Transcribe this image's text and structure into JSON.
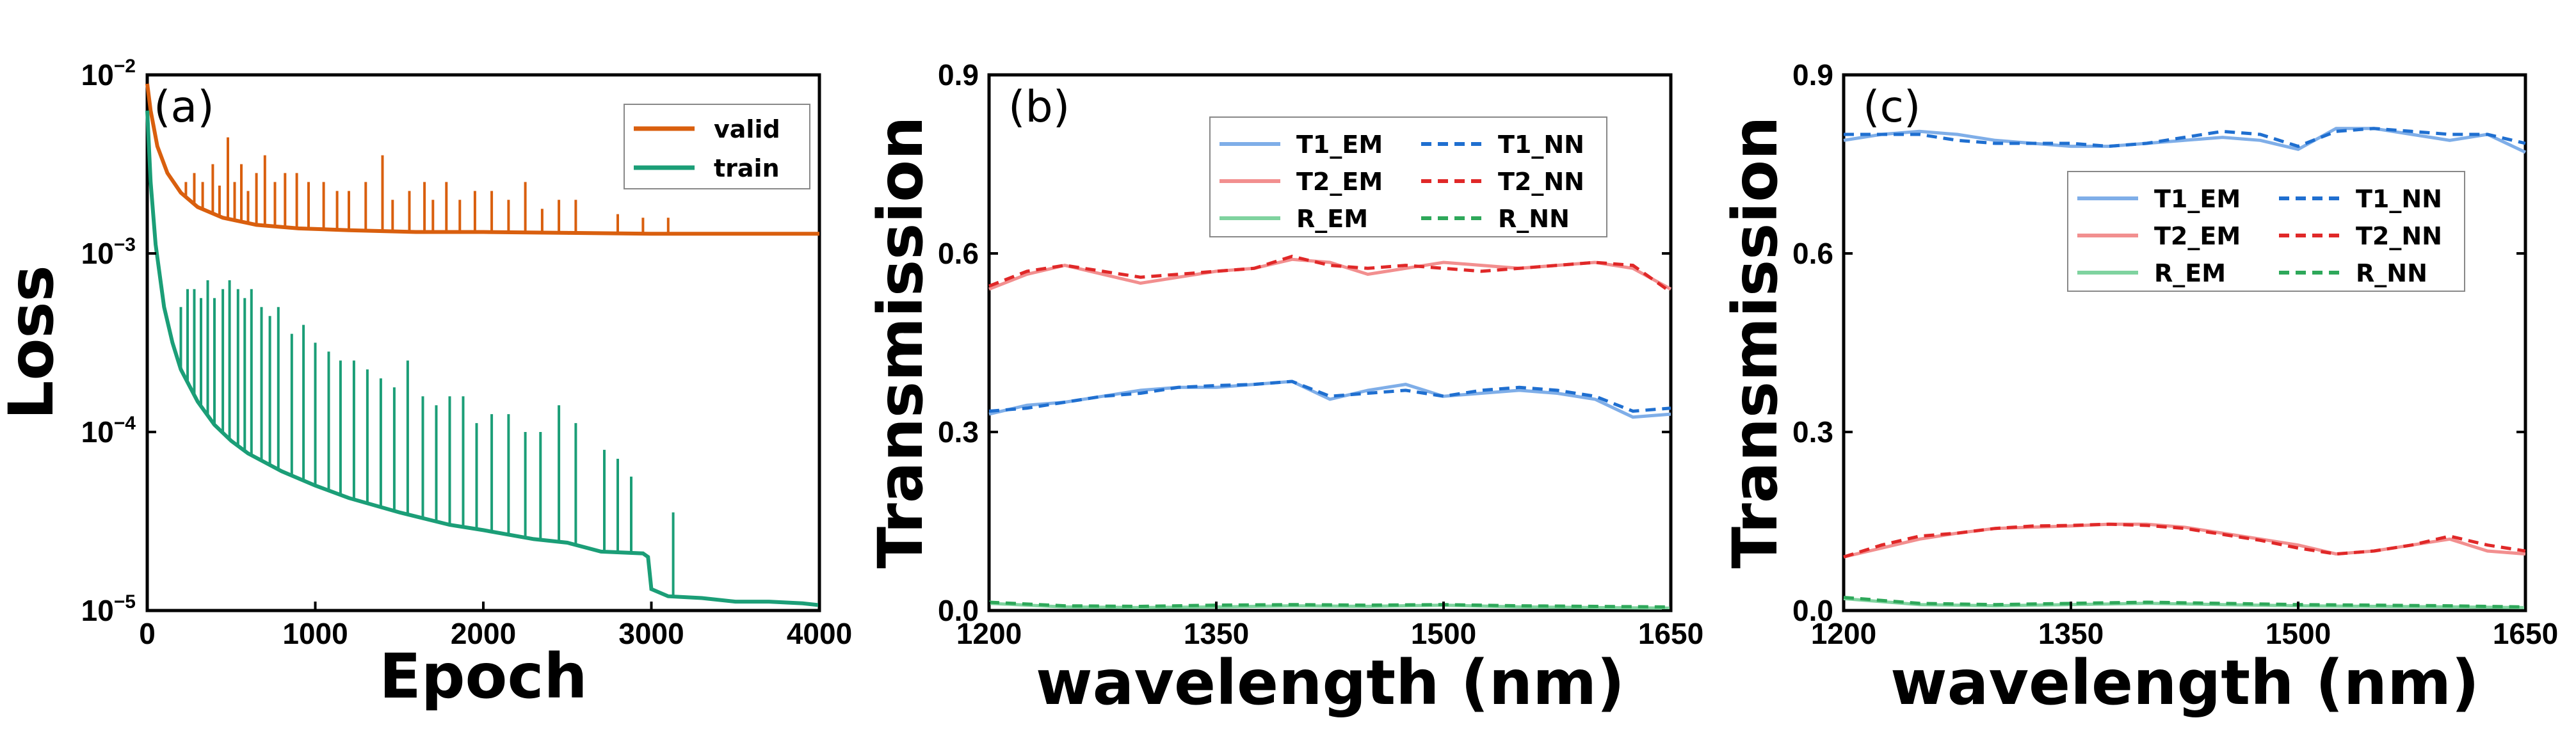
{
  "chart_data": [
    {
      "type": "line",
      "panel_label": "(a)",
      "title": "",
      "xlabel": "Epoch",
      "ylabel": "Loss",
      "xlim": [
        0,
        4000
      ],
      "ylim_log10": [
        -5,
        -2
      ],
      "yscale": "log",
      "xticks": [
        "0",
        "1000",
        "2000",
        "3000",
        "4000"
      ],
      "xtick_values": [
        0,
        1000,
        2000,
        3000,
        4000
      ],
      "yticks": [
        {
          "base": "10",
          "exp": "−2",
          "value": -2
        },
        {
          "base": "10",
          "exp": "−3",
          "value": -3
        },
        {
          "base": "10",
          "exp": "−4",
          "value": -4
        },
        {
          "base": "10",
          "exp": "−5",
          "value": -5
        }
      ],
      "legend": {
        "position": "top-right"
      },
      "series": [
        {
          "name": "valid",
          "color": "#D95F0E",
          "baseline_x": [
            0,
            20,
            60,
            120,
            200,
            300,
            450,
            650,
            900,
            1200,
            1600,
            2000,
            2500,
            3000,
            3500,
            4000
          ],
          "baseline_log10": [
            -2.05,
            -2.2,
            -2.4,
            -2.55,
            -2.66,
            -2.74,
            -2.8,
            -2.84,
            -2.86,
            -2.87,
            -2.88,
            -2.88,
            -2.885,
            -2.89,
            -2.89,
            -2.89
          ],
          "spikes_x": [
            230,
            280,
            330,
            390,
            430,
            480,
            520,
            560,
            600,
            650,
            700,
            760,
            820,
            890,
            960,
            1050,
            1130,
            1200,
            1300,
            1400,
            1460,
            1560,
            1650,
            1700,
            1780,
            1860,
            1950,
            2050,
            2150,
            2250,
            2350,
            2450,
            2550,
            2800,
            2950,
            3100
          ],
          "spikes_log10": [
            -2.6,
            -2.55,
            -2.6,
            -2.5,
            -2.62,
            -2.35,
            -2.6,
            -2.5,
            -2.65,
            -2.55,
            -2.45,
            -2.6,
            -2.55,
            -2.55,
            -2.6,
            -2.6,
            -2.65,
            -2.65,
            -2.6,
            -2.45,
            -2.7,
            -2.65,
            -2.6,
            -2.7,
            -2.6,
            -2.7,
            -2.65,
            -2.65,
            -2.7,
            -2.6,
            -2.75,
            -2.7,
            -2.7,
            -2.78,
            -2.8,
            -2.8
          ]
        },
        {
          "name": "train",
          "color": "#1B9E77",
          "baseline_x": [
            0,
            20,
            50,
            100,
            150,
            200,
            300,
            400,
            500,
            600,
            800,
            1000,
            1200,
            1500,
            1800,
            2000,
            2300,
            2500,
            2700,
            2950,
            2980,
            3000,
            3100,
            3300,
            3500,
            3700,
            3900,
            4000
          ],
          "baseline_log10": [
            -2.2,
            -2.6,
            -2.95,
            -3.3,
            -3.5,
            -3.65,
            -3.83,
            -3.96,
            -4.05,
            -4.12,
            -4.22,
            -4.3,
            -4.37,
            -4.45,
            -4.52,
            -4.55,
            -4.6,
            -4.62,
            -4.67,
            -4.68,
            -4.7,
            -4.88,
            -4.92,
            -4.93,
            -4.95,
            -4.95,
            -4.96,
            -4.97
          ],
          "spikes_x": [
            200,
            240,
            280,
            320,
            360,
            400,
            450,
            490,
            540,
            580,
            620,
            680,
            730,
            780,
            860,
            930,
            1000,
            1080,
            1150,
            1230,
            1310,
            1390,
            1470,
            1550,
            1640,
            1720,
            1800,
            1880,
            1960,
            2050,
            2150,
            2250,
            2340,
            2450,
            2550,
            2720,
            2800,
            2880,
            3130
          ],
          "spikes_log10": [
            -3.3,
            -3.2,
            -3.2,
            -3.25,
            -3.15,
            -3.25,
            -3.2,
            -3.15,
            -3.2,
            -3.25,
            -3.2,
            -3.3,
            -3.35,
            -3.3,
            -3.45,
            -3.4,
            -3.5,
            -3.55,
            -3.6,
            -3.6,
            -3.65,
            -3.7,
            -3.75,
            -3.6,
            -3.8,
            -3.85,
            -3.8,
            -3.8,
            -3.95,
            -3.9,
            -3.9,
            -4.0,
            -4.0,
            -3.85,
            -3.95,
            -4.1,
            -4.15,
            -4.25,
            -4.45
          ]
        }
      ]
    },
    {
      "type": "line",
      "panel_label": "(b)",
      "title": "",
      "xlabel": "wavelength (nm)",
      "ylabel": "Transmission",
      "xlim": [
        1200,
        1650
      ],
      "ylim": [
        0,
        0.9
      ],
      "xticks": [
        "1200",
        "1350",
        "1500",
        "1650"
      ],
      "xtick_values": [
        1200,
        1350,
        1500,
        1650
      ],
      "yticks": [
        "0.0",
        "0.3",
        "0.6",
        "0.9"
      ],
      "ytick_values": [
        0,
        0.3,
        0.6,
        0.9
      ],
      "legend": {
        "position": "top-right",
        "columns": 2
      },
      "series": [
        {
          "name": "T1_EM",
          "color": "#7FAEE8",
          "style": "solid",
          "x": [
            1200,
            1225,
            1250,
            1275,
            1300,
            1325,
            1350,
            1375,
            1400,
            1425,
            1450,
            1475,
            1500,
            1525,
            1550,
            1575,
            1600,
            1625,
            1650
          ],
          "y": [
            0.33,
            0.345,
            0.35,
            0.36,
            0.37,
            0.375,
            0.375,
            0.38,
            0.385,
            0.355,
            0.37,
            0.38,
            0.36,
            0.365,
            0.37,
            0.365,
            0.355,
            0.325,
            0.33
          ]
        },
        {
          "name": "T1_NN",
          "color": "#1F6FD0",
          "style": "dashed",
          "x": [
            1200,
            1225,
            1250,
            1275,
            1300,
            1325,
            1350,
            1375,
            1400,
            1425,
            1450,
            1475,
            1500,
            1525,
            1550,
            1575,
            1600,
            1625,
            1650
          ],
          "y": [
            0.335,
            0.34,
            0.35,
            0.36,
            0.365,
            0.375,
            0.378,
            0.38,
            0.385,
            0.36,
            0.365,
            0.37,
            0.36,
            0.37,
            0.375,
            0.37,
            0.36,
            0.335,
            0.34
          ]
        },
        {
          "name": "T2_EM",
          "color": "#F28F8F",
          "style": "solid",
          "x": [
            1200,
            1225,
            1250,
            1275,
            1300,
            1325,
            1350,
            1375,
            1400,
            1425,
            1450,
            1475,
            1500,
            1525,
            1550,
            1575,
            1600,
            1625,
            1650
          ],
          "y": [
            0.54,
            0.565,
            0.58,
            0.565,
            0.55,
            0.56,
            0.57,
            0.575,
            0.59,
            0.585,
            0.565,
            0.575,
            0.585,
            0.58,
            0.575,
            0.58,
            0.585,
            0.575,
            0.54
          ]
        },
        {
          "name": "T2_NN",
          "color": "#E02828",
          "style": "dashed",
          "x": [
            1200,
            1225,
            1250,
            1275,
            1300,
            1325,
            1350,
            1375,
            1400,
            1425,
            1450,
            1475,
            1500,
            1525,
            1550,
            1575,
            1600,
            1625,
            1650
          ],
          "y": [
            0.545,
            0.57,
            0.58,
            0.57,
            0.56,
            0.565,
            0.57,
            0.575,
            0.595,
            0.58,
            0.575,
            0.58,
            0.575,
            0.57,
            0.575,
            0.58,
            0.585,
            0.58,
            0.535
          ]
        },
        {
          "name": "R_EM",
          "color": "#7FD39F",
          "style": "solid",
          "x": [
            1200,
            1250,
            1300,
            1350,
            1400,
            1450,
            1500,
            1550,
            1600,
            1650
          ],
          "y": [
            0.012,
            0.006,
            0.005,
            0.006,
            0.008,
            0.007,
            0.009,
            0.006,
            0.005,
            0.004
          ]
        },
        {
          "name": "R_NN",
          "color": "#2EA85A",
          "style": "dashed",
          "x": [
            1200,
            1250,
            1300,
            1350,
            1400,
            1450,
            1500,
            1550,
            1600,
            1650
          ],
          "y": [
            0.014,
            0.008,
            0.007,
            0.009,
            0.01,
            0.009,
            0.01,
            0.008,
            0.007,
            0.006
          ]
        }
      ]
    },
    {
      "type": "line",
      "panel_label": "(c)",
      "title": "",
      "xlabel": "wavelength (nm)",
      "ylabel": "Transmission",
      "xlim": [
        1200,
        1650
      ],
      "ylim": [
        0,
        0.9
      ],
      "xticks": [
        "1200",
        "1350",
        "1500",
        "1650"
      ],
      "xtick_values": [
        1200,
        1350,
        1500,
        1650
      ],
      "yticks": [
        "0.0",
        "0.3",
        "0.6",
        "0.9"
      ],
      "ytick_values": [
        0,
        0.3,
        0.6,
        0.9
      ],
      "legend": {
        "position": "top-right",
        "columns": 2
      },
      "series": [
        {
          "name": "T1_EM",
          "color": "#7FAEE8",
          "style": "solid",
          "x": [
            1200,
            1225,
            1250,
            1275,
            1300,
            1325,
            1350,
            1375,
            1400,
            1425,
            1450,
            1475,
            1500,
            1525,
            1550,
            1575,
            1600,
            1625,
            1650
          ],
          "y": [
            0.79,
            0.8,
            0.805,
            0.8,
            0.79,
            0.785,
            0.78,
            0.78,
            0.785,
            0.79,
            0.795,
            0.79,
            0.775,
            0.81,
            0.81,
            0.8,
            0.79,
            0.8,
            0.77
          ]
        },
        {
          "name": "T1_NN",
          "color": "#1F6FD0",
          "style": "dashed",
          "x": [
            1200,
            1225,
            1250,
            1275,
            1300,
            1325,
            1350,
            1375,
            1400,
            1425,
            1450,
            1475,
            1500,
            1525,
            1550,
            1575,
            1600,
            1625,
            1650
          ],
          "y": [
            0.8,
            0.8,
            0.8,
            0.79,
            0.785,
            0.785,
            0.785,
            0.78,
            0.785,
            0.795,
            0.805,
            0.8,
            0.78,
            0.805,
            0.81,
            0.805,
            0.8,
            0.8,
            0.785
          ]
        },
        {
          "name": "T2_EM",
          "color": "#F28F8F",
          "style": "solid",
          "x": [
            1200,
            1225,
            1250,
            1275,
            1300,
            1325,
            1350,
            1375,
            1400,
            1425,
            1450,
            1475,
            1500,
            1525,
            1550,
            1575,
            1600,
            1625,
            1650
          ],
          "y": [
            0.09,
            0.105,
            0.12,
            0.13,
            0.138,
            0.14,
            0.142,
            0.145,
            0.145,
            0.14,
            0.13,
            0.12,
            0.11,
            0.095,
            0.1,
            0.11,
            0.12,
            0.1,
            0.095
          ]
        },
        {
          "name": "T2_NN",
          "color": "#E02828",
          "style": "dashed",
          "x": [
            1200,
            1225,
            1250,
            1275,
            1300,
            1325,
            1350,
            1375,
            1400,
            1425,
            1450,
            1475,
            1500,
            1525,
            1550,
            1575,
            1600,
            1625,
            1650
          ],
          "y": [
            0.09,
            0.11,
            0.125,
            0.13,
            0.138,
            0.142,
            0.143,
            0.145,
            0.143,
            0.138,
            0.128,
            0.118,
            0.105,
            0.095,
            0.1,
            0.11,
            0.125,
            0.11,
            0.1
          ]
        },
        {
          "name": "R_EM",
          "color": "#7FD39F",
          "style": "solid",
          "x": [
            1200,
            1250,
            1300,
            1350,
            1400,
            1450,
            1500,
            1550,
            1600,
            1650
          ],
          "y": [
            0.02,
            0.01,
            0.008,
            0.01,
            0.012,
            0.01,
            0.008,
            0.007,
            0.006,
            0.005
          ]
        },
        {
          "name": "R_NN",
          "color": "#2EA85A",
          "style": "dashed",
          "x": [
            1200,
            1250,
            1300,
            1350,
            1400,
            1450,
            1500,
            1550,
            1600,
            1650
          ],
          "y": [
            0.022,
            0.012,
            0.01,
            0.012,
            0.014,
            0.012,
            0.01,
            0.009,
            0.008,
            0.006
          ]
        }
      ]
    }
  ]
}
